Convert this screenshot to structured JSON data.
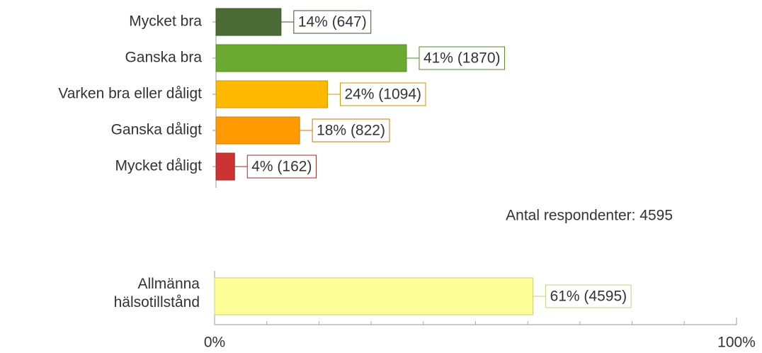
{
  "chart_data": [
    {
      "type": "barh",
      "categories": [
        "Mycket bra",
        "Ganska bra",
        "Varken bra eller dåligt",
        "Ganska dåligt",
        "Mycket dåligt"
      ],
      "values": [
        14,
        41,
        24,
        18,
        4
      ],
      "value_labels": [
        "14% (647)",
        "41% (1870)",
        "24% (1094)",
        "18% (822)",
        "4% (162)"
      ],
      "colors": [
        "#4b6b35",
        "#6aaa30",
        "#ffb900",
        "#ff9a00",
        "#cc3333"
      ],
      "xlim": [
        0,
        100
      ],
      "annotation": "Antal respondenter: 4595"
    },
    {
      "type": "barh",
      "categories": [
        "Allmänna hälsotillstånd"
      ],
      "values": [
        61
      ],
      "value_labels": [
        "61% (4595)"
      ],
      "colors": [
        "#ffff99"
      ],
      "xlim": [
        0,
        100
      ],
      "xticks": [
        {
          "value": 0,
          "label": "0%"
        },
        {
          "value": 100,
          "label": "100%"
        }
      ],
      "xminorticks": [
        10,
        20,
        30,
        40,
        50,
        60,
        70,
        80,
        90
      ]
    }
  ]
}
